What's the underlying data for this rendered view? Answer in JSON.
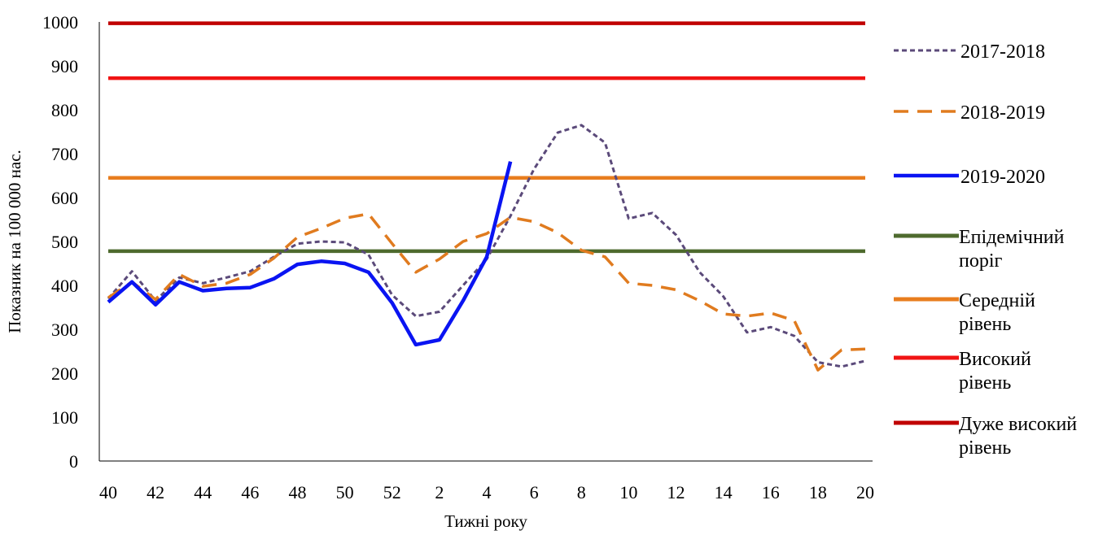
{
  "chart_data": {
    "type": "line",
    "title": "",
    "xlabel": "Тижні року",
    "ylabel": "Показник на 100 000 нас.",
    "ylim": [
      0,
      1000
    ],
    "yticks": [
      "0",
      "100",
      "200",
      "300",
      "400",
      "500",
      "600",
      "700",
      "800",
      "900",
      "1000"
    ],
    "x": [
      "40",
      "41",
      "42",
      "43",
      "44",
      "45",
      "46",
      "47",
      "48",
      "49",
      "50",
      "51",
      "52",
      "1",
      "2",
      "3",
      "4",
      "5",
      "6",
      "7",
      "8",
      "9",
      "10",
      "11",
      "12",
      "13",
      "14",
      "15",
      "16",
      "17",
      "18",
      "19",
      "20"
    ],
    "xtick_labels": [
      "40",
      "",
      "42",
      "",
      "44",
      "",
      "46",
      "",
      "48",
      "",
      "50",
      "",
      "52",
      "",
      "2",
      "",
      "4",
      "",
      "6",
      "",
      "8",
      "",
      "10",
      "",
      "12",
      "",
      "14",
      "",
      "16",
      "",
      "18",
      "",
      "20"
    ],
    "grid": false,
    "legend_position": "right",
    "series": [
      {
        "name": "2017-2018",
        "style": "dotted",
        "color": "#5B4A7A",
        "values": [
          370,
          432,
          365,
          418,
          405,
          418,
          432,
          465,
          495,
          500,
          498,
          470,
          378,
          330,
          340,
          400,
          460,
          558,
          665,
          748,
          765,
          725,
          552,
          565,
          515,
          430,
          375,
          293,
          305,
          285,
          225,
          215,
          228
        ]
      },
      {
        "name": "2018-2019",
        "style": "dashed",
        "color": "#E07B1F",
        "values": [
          372,
          408,
          368,
          425,
          398,
          405,
          425,
          462,
          510,
          530,
          553,
          563,
          495,
          430,
          460,
          500,
          518,
          555,
          545,
          520,
          480,
          465,
          405,
          400,
          390,
          365,
          335,
          330,
          337,
          320,
          207,
          253,
          255
        ]
      },
      {
        "name": "2019-2020",
        "style": "solid",
        "color": "#0A14F2",
        "values": [
          362,
          408,
          356,
          408,
          388,
          393,
          395,
          415,
          448,
          455,
          450,
          430,
          360,
          265,
          276,
          365,
          465,
          682,
          null,
          null,
          null,
          null,
          null,
          null,
          null,
          null,
          null,
          null,
          null,
          null,
          null,
          null,
          null
        ]
      },
      {
        "name": " Епідемічний поріг",
        "style": "threshold",
        "color": "#4E6A2E",
        "value": 478
      },
      {
        "name": "Середній рівень",
        "style": "threshold",
        "color": "#E87D1E",
        "value": 645
      },
      {
        "name": "Високий рівень",
        "style": "threshold",
        "color": "#F01414",
        "value": 872
      },
      {
        "name": "Дуже високий рівень",
        "style": "threshold",
        "color": "#C00000",
        "value": 997
      }
    ],
    "legend": [
      {
        "lines": [
          "2017-2018"
        ]
      },
      {
        "lines": [
          "2018-2019"
        ]
      },
      {
        "lines": [
          "2019-2020"
        ]
      },
      {
        "lines": [
          " Епідемічний",
          "поріг"
        ]
      },
      {
        "lines": [
          "Середній",
          "рівень"
        ]
      },
      {
        "lines": [
          "Високий",
          "рівень"
        ]
      },
      {
        "lines": [
          "Дуже високий",
          "рівень"
        ]
      }
    ]
  }
}
